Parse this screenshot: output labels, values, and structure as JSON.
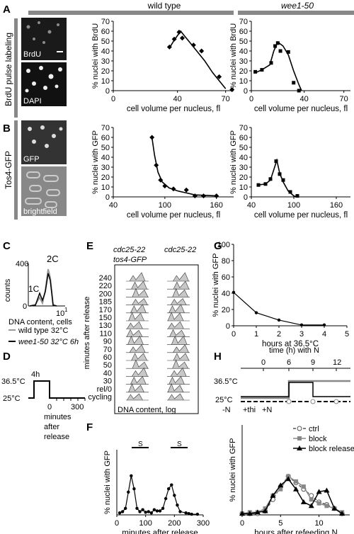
{
  "panel_letters": {
    "A": "A",
    "B": "B",
    "C": "C",
    "D": "D",
    "E": "E",
    "F": "F",
    "G": "G",
    "H": "H"
  },
  "header": {
    "wild_type": "wild type",
    "wee1": "wee1-50"
  },
  "row_labels": {
    "brdu": "BrdU pulse labeling",
    "tos4": "Tos4-GFP"
  },
  "micro_labels": {
    "brdu": "BrdU",
    "dapi": "DAPI",
    "gfp": "GFP",
    "bright": "brightfield"
  },
  "chart_data": [
    {
      "id": "A_wt",
      "type": "scatter",
      "ylabel": "% nuclei with BrdU",
      "xlabel": "cell volume per nucleus, fl",
      "xlim": [
        0,
        75
      ],
      "ylim": [
        0,
        70
      ],
      "xticks": [
        0,
        40,
        70
      ],
      "yticks": [
        0,
        10,
        20,
        30,
        40,
        50,
        60,
        70
      ],
      "points": [
        [
          35,
          44
        ],
        [
          38,
          52
        ],
        [
          41,
          59
        ],
        [
          43,
          53
        ],
        [
          50,
          46
        ],
        [
          55,
          40
        ],
        [
          66,
          14
        ],
        [
          74,
          1
        ]
      ],
      "curve": [
        [
          35,
          43
        ],
        [
          38,
          51
        ],
        [
          42,
          60
        ],
        [
          44,
          56
        ],
        [
          48,
          48
        ],
        [
          52,
          40
        ],
        [
          57,
          30
        ],
        [
          62,
          18
        ],
        [
          66,
          10
        ],
        [
          70,
          2
        ]
      ]
    },
    {
      "id": "A_wee1",
      "type": "scatter",
      "ylabel": "% nuclei with BrdU",
      "xlabel": "cell volume per nucleus, fl",
      "xlim": [
        0,
        75
      ],
      "ylim": [
        0,
        70
      ],
      "xticks": [
        0,
        40,
        70
      ],
      "yticks": [
        0,
        10,
        20,
        30,
        40,
        50,
        60,
        70
      ],
      "points": [
        [
          3,
          19
        ],
        [
          8,
          21
        ],
        [
          15,
          28
        ],
        [
          18,
          45
        ],
        [
          20,
          48
        ],
        [
          22,
          40
        ],
        [
          28,
          39
        ],
        [
          32,
          8
        ],
        [
          36,
          0
        ]
      ],
      "curve": [
        [
          3,
          18
        ],
        [
          8,
          21
        ],
        [
          14,
          26
        ],
        [
          17,
          40
        ],
        [
          20,
          49
        ],
        [
          24,
          45
        ],
        [
          28,
          36
        ],
        [
          32,
          20
        ],
        [
          36,
          6
        ],
        [
          38,
          0
        ]
      ]
    },
    {
      "id": "B_wt",
      "type": "scatter",
      "ylabel": "% nuclei with GFP",
      "xlabel": "cell volume per nucleus, fl",
      "xlim": [
        40,
        180
      ],
      "ylim": [
        0,
        70
      ],
      "xticks": [
        40,
        100,
        160
      ],
      "yticks": [
        0,
        10,
        20,
        30,
        40,
        50,
        60,
        70
      ],
      "points": [
        [
          85,
          60
        ],
        [
          90,
          32
        ],
        [
          95,
          17
        ],
        [
          100,
          11
        ],
        [
          110,
          8
        ],
        [
          125,
          7
        ],
        [
          135,
          1
        ],
        [
          145,
          1
        ],
        [
          160,
          1
        ]
      ],
      "curve": [
        [
          85,
          60
        ],
        [
          88,
          42
        ],
        [
          92,
          25
        ],
        [
          97,
          15
        ],
        [
          105,
          9
        ],
        [
          115,
          6
        ],
        [
          125,
          4
        ],
        [
          135,
          2
        ],
        [
          160,
          1
        ]
      ]
    },
    {
      "id": "B_wee1",
      "type": "scatter",
      "ylabel": "% nuclei with GFP",
      "xlabel": "cell volume per nucleus, fl",
      "xlim": [
        40,
        180
      ],
      "ylim": [
        0,
        70
      ],
      "xticks": [
        40,
        100,
        160
      ],
      "yticks": [
        0,
        10,
        20,
        30,
        40,
        50,
        60,
        70
      ],
      "points": [
        [
          50,
          12
        ],
        [
          60,
          13
        ],
        [
          67,
          18
        ],
        [
          75,
          36
        ],
        [
          80,
          23
        ],
        [
          85,
          17
        ],
        [
          95,
          5
        ],
        [
          105,
          1
        ]
      ],
      "curve": [
        [
          50,
          12
        ],
        [
          60,
          13
        ],
        [
          67,
          17
        ],
        [
          72,
          28
        ],
        [
          76,
          37
        ],
        [
          80,
          24
        ],
        [
          85,
          15
        ],
        [
          92,
          6
        ],
        [
          100,
          1
        ],
        [
          105,
          0
        ]
      ]
    },
    {
      "id": "G",
      "type": "line",
      "ylabel": "% nuclei with GFP",
      "xlabel": "hours at 36.5°C",
      "xlim": [
        0,
        5
      ],
      "ylim": [
        0,
        100
      ],
      "xticks": [
        0,
        1,
        2,
        3,
        4,
        5
      ],
      "yticks": [
        0,
        20,
        40,
        60,
        80,
        100
      ],
      "points": [
        [
          0,
          41
        ],
        [
          1,
          16
        ],
        [
          2,
          7
        ],
        [
          3,
          1
        ],
        [
          4,
          1
        ]
      ]
    },
    {
      "id": "F",
      "type": "line",
      "ylabel": "% nuclei with GFP",
      "xlabel": "minutes after release",
      "xlim": [
        0,
        300
      ],
      "ylim": [
        0,
        100
      ],
      "xticks": [
        0,
        100,
        200,
        300
      ],
      "points": [
        [
          10,
          3
        ],
        [
          20,
          5
        ],
        [
          30,
          10
        ],
        [
          40,
          35
        ],
        [
          50,
          60
        ],
        [
          60,
          40
        ],
        [
          70,
          10
        ],
        [
          80,
          5
        ],
        [
          90,
          8
        ],
        [
          100,
          4
        ],
        [
          110,
          5
        ],
        [
          120,
          3
        ],
        [
          130,
          8
        ],
        [
          140,
          6
        ],
        [
          150,
          6
        ],
        [
          160,
          10
        ],
        [
          170,
          25
        ],
        [
          180,
          40
        ],
        [
          190,
          46
        ],
        [
          200,
          30
        ],
        [
          210,
          15
        ],
        [
          220,
          5
        ],
        [
          240,
          3
        ],
        [
          250,
          2
        ],
        [
          260,
          1
        ],
        [
          280,
          1
        ]
      ]
    },
    {
      "id": "H",
      "type": "line",
      "ylabel": "% nuclei with GFP",
      "xlabel": "hours after refeeding N",
      "xlim": [
        0,
        14
      ],
      "ylim": [
        0,
        70
      ],
      "xticks": [
        0,
        5,
        10
      ],
      "legend": [
        "ctrl",
        "block",
        "block release"
      ],
      "series": [
        {
          "name": "ctrl",
          "points": [
            [
              0,
              1
            ],
            [
              1,
              1
            ],
            [
              2,
              1
            ],
            [
              3,
              3
            ],
            [
              4,
              12
            ],
            [
              5,
              22
            ],
            [
              6,
              30
            ],
            [
              7,
              25
            ],
            [
              8,
              20
            ],
            [
              9,
              15
            ],
            [
              10,
              10
            ],
            [
              11,
              8
            ],
            [
              12,
              5
            ],
            [
              13,
              1
            ]
          ]
        },
        {
          "name": "block",
          "points": [
            [
              0,
              1
            ],
            [
              1,
              2
            ],
            [
              2,
              2
            ],
            [
              3,
              5
            ],
            [
              4,
              15
            ],
            [
              5,
              20
            ],
            [
              6,
              30
            ],
            [
              7,
              26
            ],
            [
              8,
              22
            ],
            [
              9,
              12
            ],
            [
              10,
              9
            ],
            [
              11,
              7
            ],
            [
              12,
              5
            ],
            [
              13,
              2
            ]
          ]
        },
        {
          "name": "block release",
          "points": [
            [
              0,
              1
            ],
            [
              1,
              1
            ],
            [
              2,
              2
            ],
            [
              3,
              3
            ],
            [
              4,
              15
            ],
            [
              5,
              23
            ],
            [
              6,
              28
            ],
            [
              7,
              20
            ],
            [
              8,
              10
            ],
            [
              9,
              7
            ],
            [
              10,
              18
            ],
            [
              11,
              19
            ],
            [
              12,
              5
            ],
            [
              13,
              1
            ]
          ]
        }
      ]
    }
  ],
  "C": {
    "ylabel": "counts",
    "y400": "400",
    "y0": "0",
    "label2C": "2C",
    "label1C": "1C",
    "x10": "10",
    "x1": "1",
    "xlabel": "DNA content, cells",
    "legend_wt": "wild type 32°C",
    "legend_wee1": "wee1-50 32°C 6h"
  },
  "D": {
    "t365": "36.5°C",
    "t25": "25°C",
    "t4h": "4h",
    "x0": "0",
    "x300": "300",
    "xlabel1": "minutes",
    "xlabel2": "after",
    "xlabel3": "release"
  },
  "E": {
    "col1a": "cdc25-22",
    "col1b": "tos4-GFP",
    "col2": "cdc25-22",
    "ylabel": "minutes after release",
    "xlabel": "DNA content, log",
    "rows": [
      "240",
      "220",
      "200",
      "185",
      "170",
      "150",
      "130",
      "110",
      "90",
      "70",
      "60",
      "50",
      "40",
      "30",
      "rel/0",
      "cycling"
    ]
  },
  "F": {
    "s1": "S",
    "s2": "S"
  },
  "H": {
    "top_label": "time (h) with N",
    "t0": "0",
    "t6": "6",
    "t9": "9",
    "t12": "12",
    "t365": "36.5°C",
    "t25": "25°C",
    "minusN": "-N",
    "thi": "+thi",
    "plusN": "+N"
  }
}
